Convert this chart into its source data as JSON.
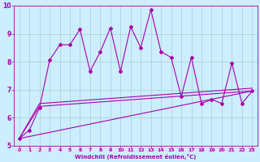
{
  "xlabel": "Windchill (Refroidissement éolien,°C)",
  "xlim": [
    -0.5,
    23.5
  ],
  "ylim": [
    5,
    10
  ],
  "xticks": [
    0,
    1,
    2,
    3,
    4,
    5,
    6,
    7,
    8,
    9,
    10,
    11,
    12,
    13,
    14,
    15,
    16,
    17,
    18,
    19,
    20,
    21,
    22,
    23
  ],
  "yticks": [
    5,
    6,
    7,
    8,
    9,
    10
  ],
  "bg_color": "#cceeff",
  "grid_color": "#aacccc",
  "line_color": "#aa00aa",
  "data_x": [
    0,
    1,
    2,
    3,
    4,
    5,
    6,
    7,
    8,
    9,
    10,
    11,
    12,
    13,
    14,
    15,
    16,
    17,
    18,
    19,
    20,
    21,
    22,
    23
  ],
  "data_y": [
    5.25,
    5.55,
    6.35,
    8.05,
    8.6,
    8.6,
    9.15,
    7.65,
    8.35,
    9.2,
    7.65,
    9.25,
    8.5,
    9.85,
    8.35,
    8.15,
    6.75,
    8.15,
    6.5,
    6.65,
    6.5,
    7.95,
    6.5,
    6.95
  ],
  "line1_x": [
    0,
    23
  ],
  "line1_y": [
    5.25,
    6.95
  ],
  "line2_x": [
    0,
    2,
    23
  ],
  "line2_y": [
    5.25,
    6.4,
    6.95
  ],
  "line3_x": [
    0,
    2,
    23
  ],
  "line3_y": [
    5.25,
    6.5,
    7.05
  ]
}
